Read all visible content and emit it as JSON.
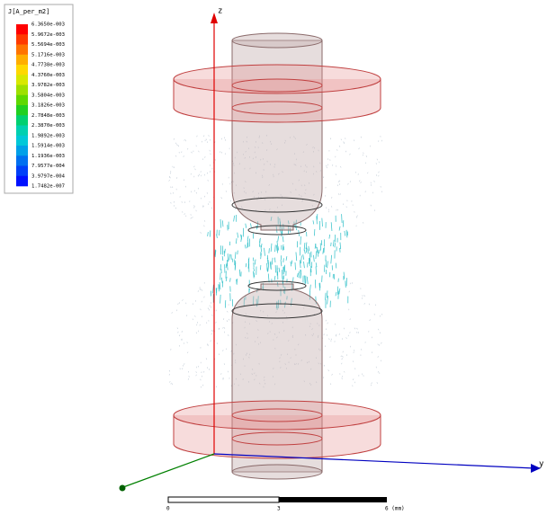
{
  "legend": {
    "title": "J[A_per_m2]",
    "labels": [
      "6.3650e-003",
      "5.9672e-003",
      "5.5694e-003",
      "5.1716e-003",
      "4.7738e-003",
      "4.3760e-003",
      "3.9782e-003",
      "3.5804e-003",
      "3.1826e-003",
      "2.7848e-003",
      "2.3870e-003",
      "1.9892e-003",
      "1.5914e-003",
      "1.1936e-003",
      "7.9577e-004",
      "3.9797e-004",
      "1.7482e-007"
    ],
    "colors": [
      "#ff0000",
      "#ff3a00",
      "#ff7400",
      "#ffae00",
      "#ffd800",
      "#d8e800",
      "#9ee000",
      "#5ed800",
      "#20d020",
      "#00d070",
      "#00d0b0",
      "#00c8d8",
      "#00a0e8",
      "#0070f0",
      "#0040f8",
      "#0010ff"
    ]
  },
  "axes": {
    "z": "z",
    "y": "y"
  },
  "scale_bar": {
    "start": "0",
    "middle": "3",
    "end": "6 (mm)"
  }
}
